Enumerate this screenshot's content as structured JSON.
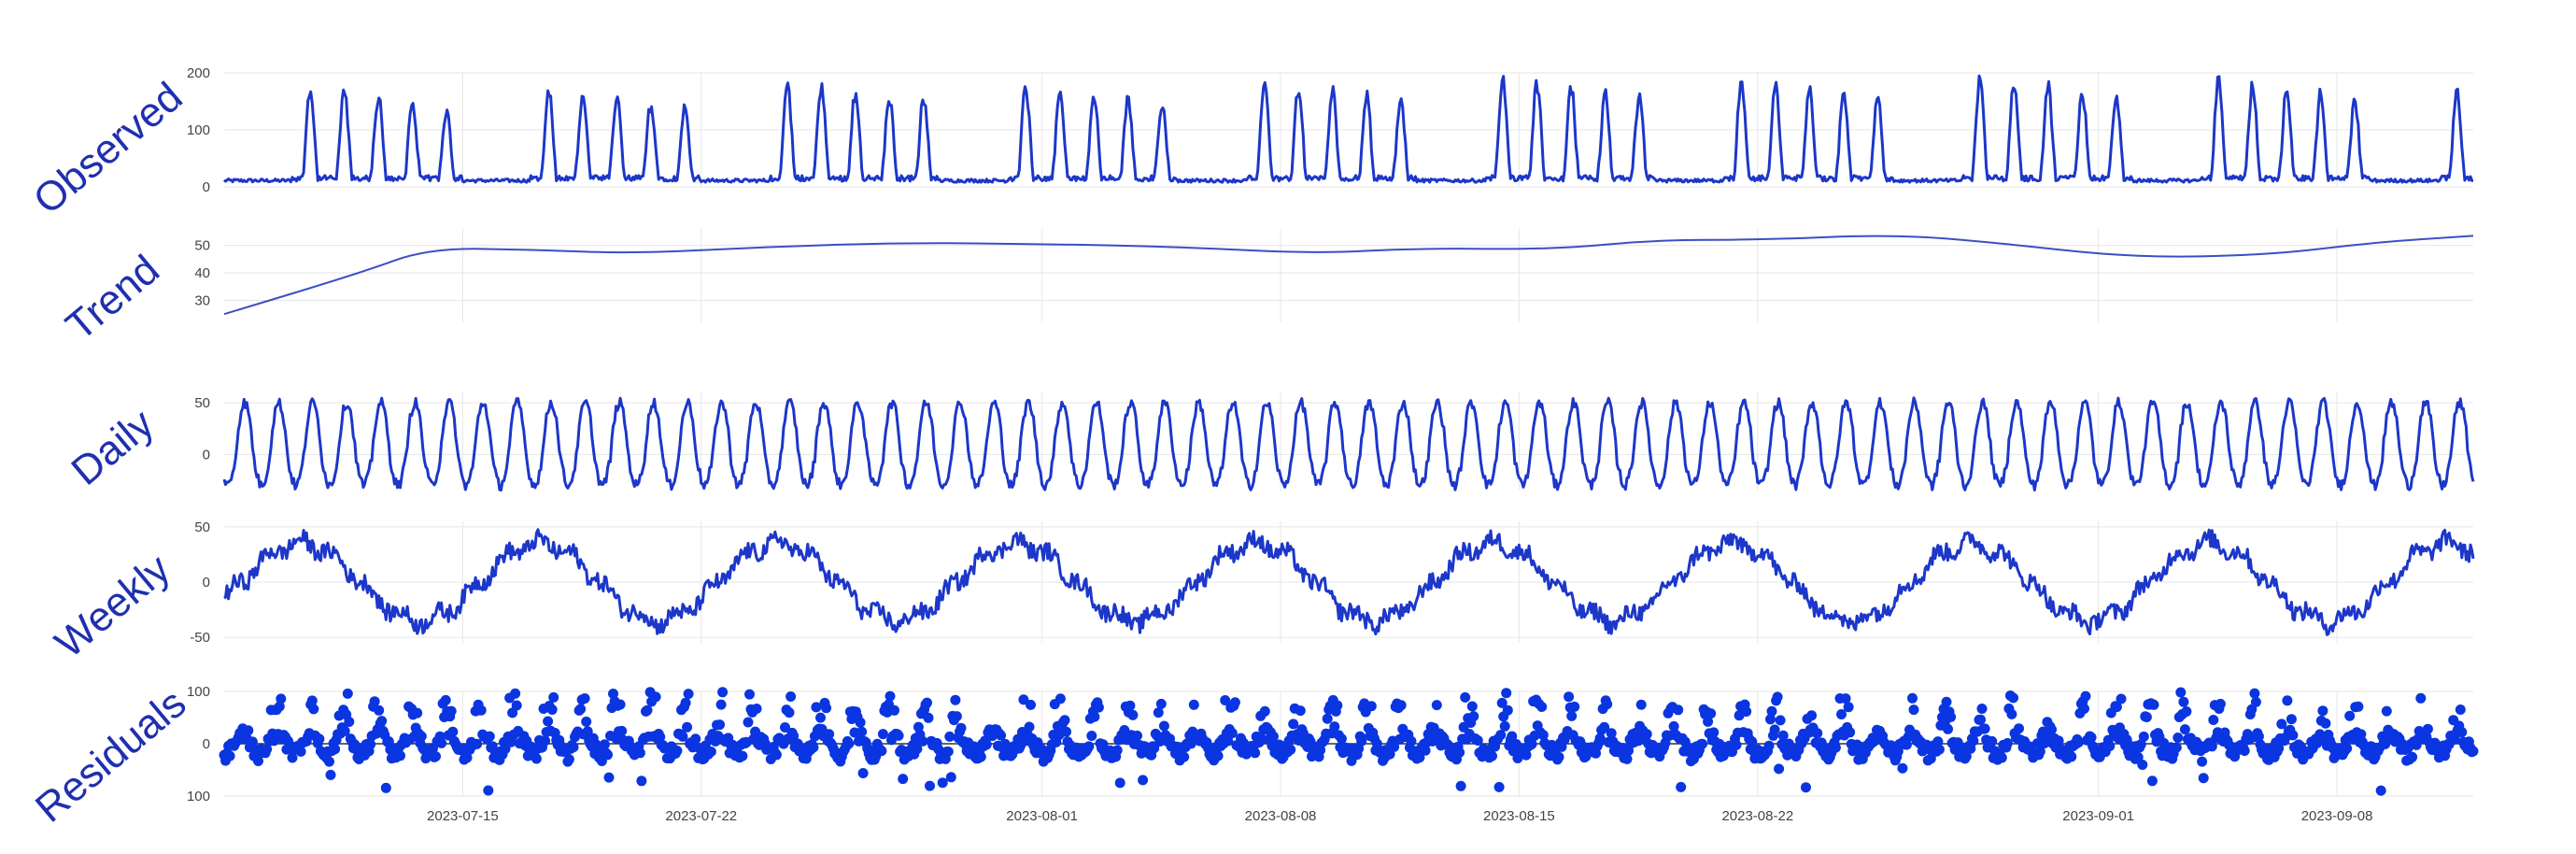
{
  "chart_data": {
    "type": "line",
    "subplots": [
      {
        "id": "observed",
        "label": "Observed",
        "yticks": [
          0,
          100,
          200
        ],
        "ylim": [
          0,
          200
        ],
        "pattern": "weekday-peaks",
        "weekly_peak_values": [
          180,
          178,
          190,
          182,
          190,
          195,
          198,
          198,
          192,
          175
        ]
      },
      {
        "id": "trend",
        "label": "Trend",
        "yticks": [
          30,
          40,
          50
        ],
        "ylim": [
          22,
          56
        ],
        "x": [
          "2023-07-08",
          "2023-07-12",
          "2023-07-14",
          "2023-07-17",
          "2023-07-20",
          "2023-07-24",
          "2023-07-28",
          "2023-08-01",
          "2023-08-05",
          "2023-08-09",
          "2023-08-12",
          "2023-08-16",
          "2023-08-19",
          "2023-08-22",
          "2023-08-26",
          "2023-08-29",
          "2023-09-02",
          "2023-09-06",
          "2023-09-09",
          "2023-09-12"
        ],
        "y": [
          25,
          40,
          49,
          48.5,
          47,
          49.5,
          51,
          50.5,
          49.5,
          47,
          49,
          48.5,
          52,
          52,
          54,
          51,
          45.5,
          46.5,
          51,
          53.5
        ]
      },
      {
        "id": "daily",
        "label": "Daily",
        "yticks": [
          0,
          50
        ],
        "ylim": [
          -35,
          60
        ],
        "pattern": "daily-sine",
        "amplitude": 50
      },
      {
        "id": "weekly",
        "label": "Weekly",
        "yticks": [
          -50,
          0,
          50
        ],
        "ylim": [
          -55,
          55
        ],
        "pattern": "weekly-sine",
        "amplitude": 35
      },
      {
        "id": "residuals",
        "label": "Residuals",
        "yticks": [
          "100",
          "0",
          "100"
        ],
        "ylim": [
          -100,
          100
        ],
        "pattern": "scatter-dense",
        "zero_line": true
      }
    ],
    "x_range": [
      "2023-07-08",
      "2023-09-12"
    ],
    "xticks": [
      "2023-07-15",
      "2023-07-22",
      "2023-08-01",
      "2023-08-08",
      "2023-08-15",
      "2023-08-22",
      "2023-09-01",
      "2023-09-08"
    ],
    "series_color": "#1c37c9",
    "grid": true
  }
}
